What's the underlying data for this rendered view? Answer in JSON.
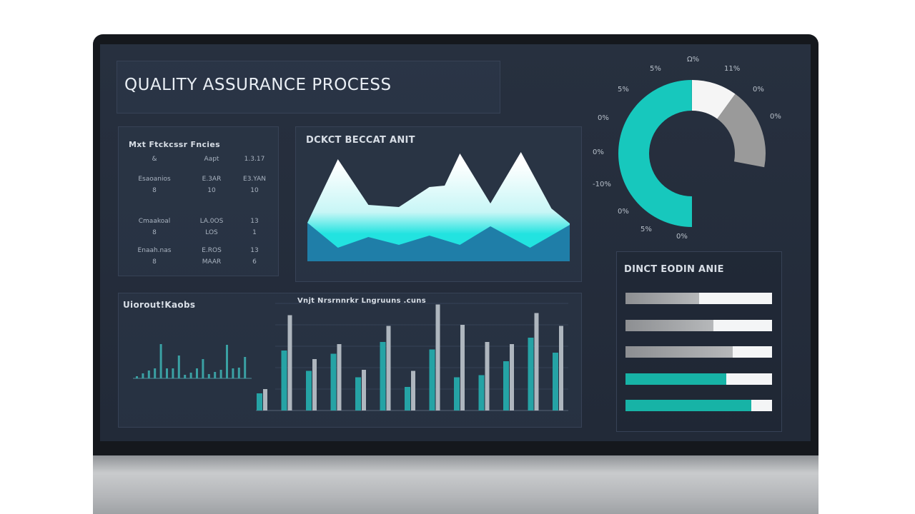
{
  "title": "QUALITY ASSURANCE PROCESS",
  "metrics_table": {
    "title": "Mxt Ftckcssr Fncies",
    "rows": [
      [
        "&",
        "Aapt",
        "1.3.17"
      ],
      [
        "Esaoanios",
        "E.3AR",
        "E3.YAN"
      ],
      [
        "8",
        "10",
        "10"
      ],
      [
        "Cmaakoal",
        "LA.0OS",
        "13"
      ],
      [
        "8",
        "LOS",
        "1"
      ],
      [
        "Enaah.nas",
        "E.ROS",
        "13"
      ],
      [
        "8",
        "MAAR",
        "6"
      ]
    ]
  },
  "area_chart": {
    "title": "DCKCT BECCAT ANIT",
    "colors": {
      "upper_top": "#ffffff",
      "upper_bottom": "#22e3e0",
      "lower": "#1f7ea8"
    },
    "chart_data": {
      "type": "area",
      "series": [
        {
          "x": [
            0,
            1,
            2,
            3,
            4,
            4.5,
            5,
            6,
            7,
            8,
            8.6
          ],
          "values": [
            54,
            143,
            79,
            76,
            104,
            106,
            151,
            81,
            153,
            74,
            53
          ]
        },
        {
          "x": [
            0,
            1,
            2,
            3,
            4,
            5,
            6,
            7.3,
            8.6
          ],
          "values": [
            54,
            19,
            34,
            23,
            36,
            23,
            49,
            19,
            51
          ]
        }
      ]
    }
  },
  "donut": {
    "colors": {
      "teal": "#17c8bd",
      "white": "#f5f5f5",
      "gray": "#9a9a9a"
    },
    "chart_data": {
      "type": "pie",
      "segments": [
        {
          "value": 10
        },
        {
          "value": 18
        },
        {
          "value": 50
        }
      ]
    },
    "labels": [
      "Ω%",
      "5%",
      "11%",
      "5%",
      "0%",
      "0%",
      "0%",
      "0%",
      "-10%",
      "0%",
      "5%",
      "0%"
    ]
  },
  "mini_chart": {
    "title": "Uiorout!Kaobs",
    "chart_data": {
      "type": "bar",
      "values": [
        3,
        7,
        11,
        14,
        48,
        14,
        14,
        32,
        5,
        8,
        14,
        27,
        6,
        9,
        12,
        47,
        14,
        15,
        30
      ]
    }
  },
  "bar_chart": {
    "title": "Vnjt  Nrsrnnrkr Lngruuns .cuns",
    "colors": {
      "a": "#1fd9d2",
      "b": "#f2f6f7"
    },
    "chart_data": {
      "type": "bar",
      "series": [
        {
          "values": [
            16,
            56,
            37,
            53,
            31,
            64,
            22,
            57,
            31,
            33,
            46,
            68,
            54
          ]
        },
        {
          "values": [
            20,
            89,
            48,
            62,
            38,
            79,
            37,
            99,
            80,
            64,
            62,
            91,
            79
          ]
        }
      ]
    }
  },
  "progress_panel": {
    "title": "DINCT EODIN ANIE",
    "bars": [
      {
        "value": 0.5,
        "color": "gray"
      },
      {
        "value": 0.6,
        "color": "gray"
      },
      {
        "value": 0.73,
        "color": "gray"
      },
      {
        "value": 0.69,
        "color": "teal"
      },
      {
        "value": 0.86,
        "color": "teal"
      }
    ]
  }
}
